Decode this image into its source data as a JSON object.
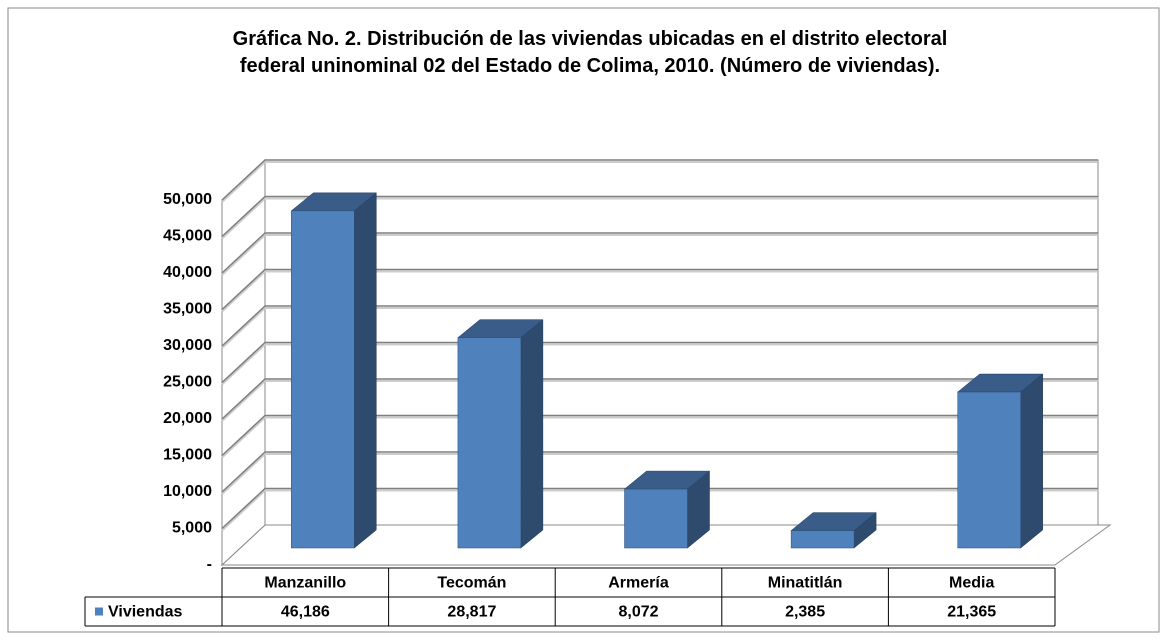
{
  "chart_data": {
    "type": "bar3d",
    "title": "Gráfica No. 2. Distribución de las viviendas ubicadas en el distrito electoral federal uninominal 02 del Estado de Colima, 2010. (Número de viviendas).",
    "categories": [
      "Manzanillo",
      "Tecomán",
      "Armería",
      "Minatitlán",
      "Media"
    ],
    "series": [
      {
        "name": "Viviendas",
        "color": "#4f81bd",
        "values": [
          46186,
          28817,
          8072,
          2385,
          21365
        ],
        "value_labels": [
          "46,186",
          "28,817",
          "8,072",
          "2,385",
          "21,365"
        ]
      }
    ],
    "ylim": [
      0,
      50000
    ],
    "yticks": [
      {
        "value": 0,
        "label": "-"
      },
      {
        "value": 5000,
        "label": "5,000"
      },
      {
        "value": 10000,
        "label": "10,000"
      },
      {
        "value": 15000,
        "label": "15,000"
      },
      {
        "value": 20000,
        "label": "20,000"
      },
      {
        "value": 25000,
        "label": "25,000"
      },
      {
        "value": 30000,
        "label": "30,000"
      },
      {
        "value": 35000,
        "label": "35,000"
      },
      {
        "value": 40000,
        "label": "40,000"
      },
      {
        "value": 45000,
        "label": "45,000"
      },
      {
        "value": 50000,
        "label": "50,000"
      }
    ],
    "grid": true,
    "legend": "table"
  }
}
